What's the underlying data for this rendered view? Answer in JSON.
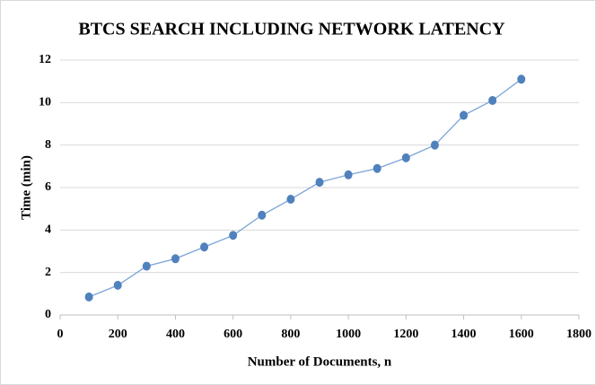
{
  "chart_data": {
    "type": "line",
    "title": "BTCS SEARCH INCLUDING NETWORK LATENCY",
    "x_label": "Number of Documents,  n",
    "y_label": "Time (min)",
    "x": [
      100,
      200,
      300,
      400,
      500,
      600,
      700,
      800,
      900,
      1000,
      1100,
      1200,
      1300,
      1400,
      1500,
      1600
    ],
    "series": [
      {
        "name": "Time",
        "color": "#4f81bd",
        "values": [
          0.85,
          1.4,
          2.3,
          2.65,
          3.2,
          3.75,
          4.7,
          5.45,
          6.25,
          6.6,
          6.9,
          7.4,
          8.0,
          9.4,
          10.1,
          11.1
        ]
      }
    ],
    "xlim": [
      0,
      1800
    ],
    "xticks": [
      0,
      200,
      400,
      600,
      800,
      1000,
      1200,
      1400,
      1600,
      1800
    ],
    "ylim": [
      0,
      12
    ],
    "yticks": [
      0,
      2,
      4,
      6,
      8,
      10,
      12
    ],
    "grid": true
  }
}
